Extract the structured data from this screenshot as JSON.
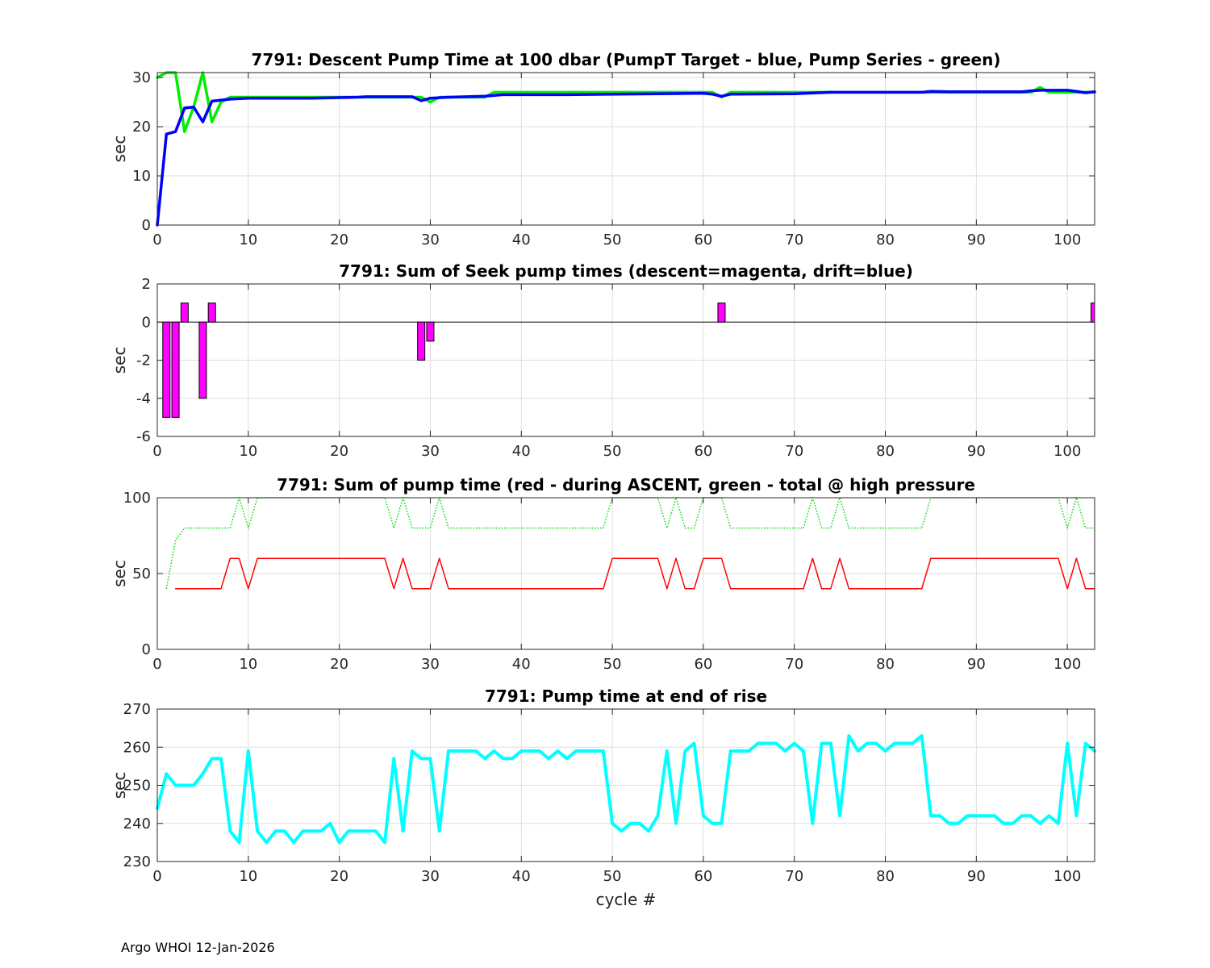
{
  "footer": "Argo WHOI 12-Jan-2026",
  "chart_data": [
    {
      "type": "line",
      "title": "7791: Descent Pump Time at 100 dbar (PumpT Target - blue, Pump Series - green)",
      "xlabel": "",
      "ylabel": "sec",
      "xlim": [
        0,
        103
      ],
      "ylim": [
        0,
        31
      ],
      "xticks": [
        0,
        10,
        20,
        30,
        40,
        50,
        60,
        70,
        80,
        90,
        100
      ],
      "yticks": [
        0,
        10,
        20,
        30
      ],
      "grid": true,
      "series": [
        {
          "name": "Pump Series",
          "color": "#00ee00",
          "style": "solid",
          "x": [
            0,
            1,
            2,
            3,
            4,
            5,
            6,
            7,
            8,
            10,
            18,
            28,
            29,
            30,
            31,
            36,
            37,
            60,
            61,
            62,
            63,
            70,
            85,
            95,
            96,
            97,
            98,
            100,
            102,
            103
          ],
          "y": [
            30,
            31,
            31,
            19,
            24,
            31,
            21,
            25,
            26,
            26,
            26,
            26,
            26,
            25,
            26,
            26,
            27,
            27,
            27,
            26,
            27,
            27,
            27,
            27,
            27,
            28,
            27,
            27,
            27,
            27
          ]
        },
        {
          "name": "PumpT Target",
          "color": "#0000ff",
          "style": "solid",
          "x": [
            0,
            1,
            2,
            3,
            4,
            5,
            6,
            8,
            10,
            17,
            22,
            23,
            28,
            29,
            30,
            32,
            36,
            38,
            45,
            55,
            60,
            61,
            62,
            63,
            70,
            74,
            84,
            85,
            87,
            95,
            96,
            97,
            100,
            101,
            102,
            103
          ],
          "y": [
            0,
            18.5,
            19,
            23.8,
            24,
            21,
            25.2,
            25.6,
            25.8,
            25.8,
            26,
            26.1,
            26.1,
            25.3,
            25.8,
            26,
            26.2,
            26.5,
            26.5,
            26.7,
            26.8,
            26.6,
            26.2,
            26.6,
            26.7,
            27,
            27,
            27.2,
            27.1,
            27.1,
            27.3,
            27.4,
            27.4,
            27.2,
            26.9,
            27.1
          ]
        }
      ]
    },
    {
      "type": "bar",
      "title": "7791: Sum of Seek pump times (descent=magenta, drift=blue)",
      "xlabel": "",
      "ylabel": "sec",
      "xlim": [
        0,
        103
      ],
      "ylim": [
        -6,
        2
      ],
      "xticks": [
        0,
        10,
        20,
        30,
        40,
        50,
        60,
        70,
        80,
        90,
        100
      ],
      "yticks": [
        -6,
        -4,
        -2,
        0,
        2
      ],
      "grid": true,
      "bar_color": "#ff00ff",
      "x": [
        1,
        2,
        3,
        5,
        6,
        29,
        30,
        62,
        103
      ],
      "values": [
        -5,
        -5,
        1,
        -4,
        1,
        -2,
        -1,
        1,
        1
      ]
    },
    {
      "type": "line",
      "title": "7791: Sum of pump time (red - during ASCENT, green - total @ high pressure",
      "xlabel": "",
      "ylabel": "sec",
      "xlim": [
        0,
        103
      ],
      "ylim": [
        0,
        100
      ],
      "xticks": [
        0,
        10,
        20,
        30,
        40,
        50,
        60,
        70,
        80,
        90,
        100
      ],
      "yticks": [
        0,
        50,
        100
      ],
      "grid": true,
      "series": [
        {
          "name": "total @ high pressure",
          "color": "#00dd00",
          "style": "dotted",
          "x": [
            1,
            2,
            3,
            6,
            7,
            8,
            9,
            10,
            11,
            12,
            25,
            26,
            27,
            28,
            30,
            31,
            32,
            49,
            50,
            55,
            56,
            57,
            58,
            59,
            60,
            62,
            63,
            70,
            71,
            72,
            73,
            74,
            75,
            76,
            84,
            85,
            99,
            100,
            101,
            102,
            103
          ],
          "y": [
            40,
            72,
            80,
            80,
            80,
            80,
            100,
            80,
            100,
            100,
            100,
            80,
            100,
            80,
            80,
            100,
            80,
            80,
            100,
            100,
            80,
            100,
            80,
            80,
            100,
            100,
            80,
            80,
            80,
            100,
            80,
            80,
            100,
            80,
            80,
            100,
            100,
            80,
            100,
            80,
            80
          ]
        },
        {
          "name": "during ASCENT",
          "color": "#ff0000",
          "style": "solid",
          "x": [
            2,
            7,
            8,
            9,
            10,
            11,
            25,
            26,
            27,
            28,
            30,
            31,
            32,
            49,
            50,
            55,
            56,
            57,
            58,
            59,
            60,
            62,
            63,
            71,
            72,
            73,
            74,
            75,
            76,
            84,
            85,
            99,
            100,
            101,
            102,
            103
          ],
          "y": [
            40,
            40,
            60,
            60,
            40,
            60,
            60,
            40,
            60,
            40,
            40,
            60,
            40,
            40,
            60,
            60,
            40,
            60,
            40,
            40,
            60,
            60,
            40,
            40,
            60,
            40,
            40,
            60,
            40,
            40,
            60,
            60,
            40,
            60,
            40,
            40
          ]
        }
      ]
    },
    {
      "type": "line",
      "title": "7791: Pump time at end of rise",
      "xlabel": "cycle #",
      "ylabel": "sec",
      "xlim": [
        0,
        103
      ],
      "ylim": [
        230,
        270
      ],
      "xticks": [
        0,
        10,
        20,
        30,
        40,
        50,
        60,
        70,
        80,
        90,
        100
      ],
      "yticks": [
        230,
        240,
        250,
        260,
        270
      ],
      "grid": true,
      "series": [
        {
          "name": "",
          "color": "#00ffff",
          "style": "solid",
          "x": [
            0,
            1,
            2,
            3,
            4,
            5,
            6,
            7,
            8,
            9,
            10,
            11,
            12,
            13,
            14,
            15,
            16,
            17,
            18,
            19,
            20,
            21,
            22,
            23,
            24,
            25,
            26,
            27,
            28,
            29,
            30,
            31,
            32,
            33,
            34,
            35,
            36,
            37,
            38,
            39,
            40,
            41,
            42,
            43,
            44,
            45,
            46,
            47,
            48,
            49,
            50,
            51,
            52,
            53,
            54,
            55,
            56,
            57,
            58,
            59,
            60,
            61,
            62,
            63,
            64,
            65,
            66,
            67,
            68,
            69,
            70,
            71,
            72,
            73,
            74,
            75,
            76,
            77,
            78,
            79,
            80,
            81,
            82,
            83,
            84,
            85,
            86,
            87,
            88,
            89,
            90,
            91,
            92,
            93,
            94,
            95,
            96,
            97,
            98,
            99,
            100,
            101,
            102,
            103
          ],
          "y": [
            244,
            253,
            250,
            250,
            250,
            253,
            257,
            257,
            238,
            235,
            259,
            238,
            235,
            238,
            238,
            235,
            238,
            238,
            238,
            240,
            235,
            238,
            238,
            238,
            238,
            235,
            257,
            238,
            259,
            257,
            257,
            238,
            259,
            259,
            259,
            259,
            257,
            259,
            257,
            257,
            259,
            259,
            259,
            257,
            259,
            257,
            259,
            259,
            259,
            259,
            240,
            238,
            240,
            240,
            238,
            242,
            259,
            240,
            259,
            261,
            242,
            240,
            240,
            259,
            259,
            259,
            261,
            261,
            261,
            259,
            261,
            259,
            240,
            261,
            261,
            242,
            263,
            259,
            261,
            261,
            259,
            261,
            261,
            261,
            263,
            242,
            242,
            240,
            240,
            242,
            242,
            242,
            242,
            240,
            240,
            242,
            242,
            240,
            242,
            240,
            261,
            242,
            261,
            259
          ]
        }
      ]
    }
  ]
}
